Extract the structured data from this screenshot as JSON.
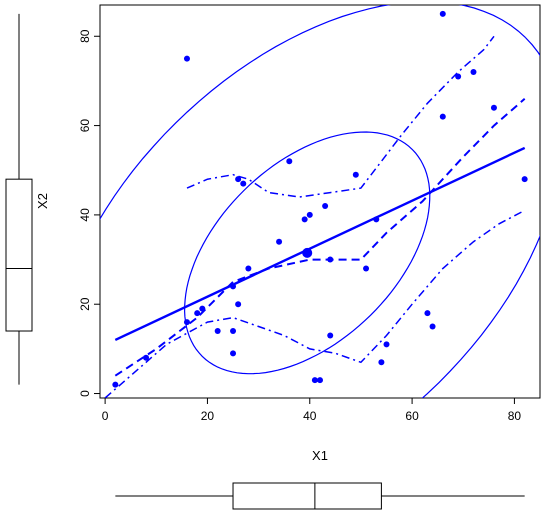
{
  "chart_data": {
    "type": "scatter",
    "title": "",
    "xlabel": "X1",
    "ylabel": "X2",
    "xlim": [
      -1,
      85
    ],
    "ylim": [
      -1,
      87
    ],
    "x_ticks": [
      0,
      20,
      40,
      60,
      80
    ],
    "y_ticks": [
      0,
      20,
      40,
      60,
      80
    ],
    "x_tick_labels": [
      "0",
      "20",
      "40",
      "60",
      "80"
    ],
    "y_tick_labels": [
      "0",
      "20",
      "40",
      "60",
      "80"
    ],
    "colors": {
      "points": "#0000ff",
      "box": "#000000"
    },
    "points": [
      {
        "x": 2,
        "y": 2
      },
      {
        "x": 8,
        "y": 8
      },
      {
        "x": 16,
        "y": 16
      },
      {
        "x": 16,
        "y": 75
      },
      {
        "x": 18,
        "y": 18
      },
      {
        "x": 19,
        "y": 19
      },
      {
        "x": 22,
        "y": 14
      },
      {
        "x": 25,
        "y": 14
      },
      {
        "x": 25,
        "y": 9
      },
      {
        "x": 25,
        "y": 24
      },
      {
        "x": 26,
        "y": 20
      },
      {
        "x": 26,
        "y": 48
      },
      {
        "x": 27,
        "y": 47
      },
      {
        "x": 28,
        "y": 28
      },
      {
        "x": 34,
        "y": 34
      },
      {
        "x": 36,
        "y": 52
      },
      {
        "x": 39,
        "y": 39
      },
      {
        "x": 40,
        "y": 40
      },
      {
        "x": 41,
        "y": 3
      },
      {
        "x": 42,
        "y": 3
      },
      {
        "x": 43,
        "y": 42
      },
      {
        "x": 44,
        "y": 13
      },
      {
        "x": 44,
        "y": 30
      },
      {
        "x": 49,
        "y": 49
      },
      {
        "x": 51,
        "y": 28
      },
      {
        "x": 53,
        "y": 39
      },
      {
        "x": 54,
        "y": 7
      },
      {
        "x": 55,
        "y": 11
      },
      {
        "x": 63,
        "y": 18
      },
      {
        "x": 64,
        "y": 15
      },
      {
        "x": 66,
        "y": 85
      },
      {
        "x": 66,
        "y": 62
      },
      {
        "x": 69,
        "y": 71
      },
      {
        "x": 72,
        "y": 72
      },
      {
        "x": 76,
        "y": 64
      },
      {
        "x": 82,
        "y": 48
      }
    ],
    "centroid": {
      "x": 39.5,
      "y": 31.5
    },
    "regression_line": [
      {
        "x": 2,
        "y": 12
      },
      {
        "x": 82,
        "y": 55
      }
    ],
    "smooth_center": [
      {
        "x": 2,
        "y": 4
      },
      {
        "x": 10,
        "y": 10
      },
      {
        "x": 18,
        "y": 17
      },
      {
        "x": 25,
        "y": 25
      },
      {
        "x": 32,
        "y": 28
      },
      {
        "x": 40,
        "y": 30
      },
      {
        "x": 45,
        "y": 30
      },
      {
        "x": 50,
        "y": 30
      },
      {
        "x": 55,
        "y": 36
      },
      {
        "x": 62,
        "y": 43
      },
      {
        "x": 70,
        "y": 53
      },
      {
        "x": 76,
        "y": 60
      },
      {
        "x": 82,
        "y": 66
      }
    ],
    "smooth_upper": [
      {
        "x": 16,
        "y": 46
      },
      {
        "x": 20,
        "y": 48
      },
      {
        "x": 25,
        "y": 49
      },
      {
        "x": 28,
        "y": 48
      },
      {
        "x": 32,
        "y": 45
      },
      {
        "x": 38,
        "y": 44
      },
      {
        "x": 44,
        "y": 45
      },
      {
        "x": 50,
        "y": 46
      },
      {
        "x": 54,
        "y": 52
      },
      {
        "x": 58,
        "y": 58
      },
      {
        "x": 63,
        "y": 65
      },
      {
        "x": 69,
        "y": 72
      },
      {
        "x": 74,
        "y": 77
      },
      {
        "x": 76,
        "y": 80
      }
    ],
    "smooth_lower": [
      {
        "x": 0,
        "y": -1
      },
      {
        "x": 5,
        "y": 4
      },
      {
        "x": 12,
        "y": 11
      },
      {
        "x": 20,
        "y": 16
      },
      {
        "x": 25,
        "y": 17
      },
      {
        "x": 30,
        "y": 15
      },
      {
        "x": 35,
        "y": 13
      },
      {
        "x": 40,
        "y": 10
      },
      {
        "x": 45,
        "y": 9
      },
      {
        "x": 50,
        "y": 7
      },
      {
        "x": 55,
        "y": 13
      },
      {
        "x": 60,
        "y": 20
      },
      {
        "x": 66,
        "y": 28
      },
      {
        "x": 72,
        "y": 34
      },
      {
        "x": 77,
        "y": 38
      },
      {
        "x": 82,
        "y": 41
      }
    ],
    "box_x": {
      "min": 2,
      "q1": 25,
      "median": 41,
      "q3": 54,
      "max": 82
    },
    "box_y": {
      "min": 2,
      "q1": 14,
      "median": 28,
      "q3": 48,
      "max": 85
    }
  }
}
